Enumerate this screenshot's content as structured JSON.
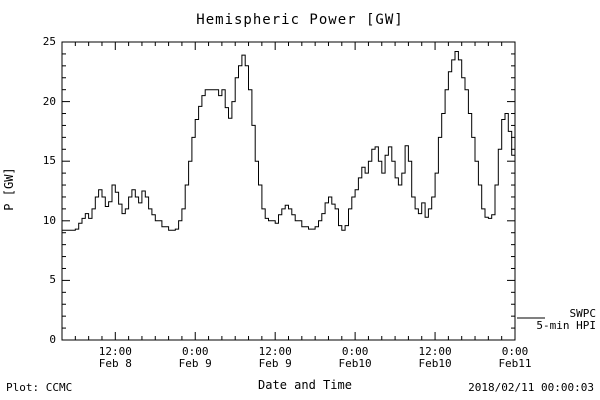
{
  "title": "Hemispheric Power [GW]",
  "axes": {
    "ylabel": "P [GW]",
    "xlabel": "Date and Time",
    "yticks": [
      0,
      5,
      10,
      15,
      20,
      25
    ],
    "xticks": [
      {
        "hour": 12,
        "time": "12:00",
        "date": "Feb 8"
      },
      {
        "hour": 24,
        "time": "0:00",
        "date": "Feb 9"
      },
      {
        "hour": 36,
        "time": "12:00",
        "date": "Feb 9"
      },
      {
        "hour": 48,
        "time": "0:00",
        "date": "Feb10"
      },
      {
        "hour": 60,
        "time": "12:00",
        "date": "Feb10"
      },
      {
        "hour": 72,
        "time": "0:00",
        "date": "Feb11"
      }
    ]
  },
  "legend": {
    "source_label": "SWPC",
    "series_label": "5-min HPI"
  },
  "footer": {
    "left": "Plot: CCMC",
    "right": "2018/02/11 00:00:03"
  },
  "colors": {
    "line": "#000000",
    "axis": "#000000",
    "background": "#ffffff"
  },
  "chart_data": {
    "type": "line",
    "title": "Hemispheric Power [GW]",
    "xlabel": "Date and Time",
    "ylabel": "P [GW]",
    "ylim": [
      0,
      25
    ],
    "xlim_hours_since_feb8": [
      4,
      72
    ],
    "x_unit": "hours since 2018-02-08 00:00 UT",
    "grid": false,
    "legend_position": "outside-right-bottom",
    "step_mode": "step-after",
    "points": [
      [
        4,
        9.2
      ],
      [
        5,
        9.2
      ],
      [
        6,
        9.3
      ],
      [
        6.5,
        9.8
      ],
      [
        7,
        10.2
      ],
      [
        7.5,
        10.6
      ],
      [
        8,
        10.2
      ],
      [
        8.5,
        11.0
      ],
      [
        9,
        12.0
      ],
      [
        9.5,
        12.6
      ],
      [
        10,
        12.0
      ],
      [
        10.5,
        11.2
      ],
      [
        11,
        11.6
      ],
      [
        11.5,
        13.0
      ],
      [
        12,
        12.4
      ],
      [
        12.5,
        11.4
      ],
      [
        13,
        10.6
      ],
      [
        13.5,
        11.0
      ],
      [
        14,
        12.0
      ],
      [
        14.5,
        12.6
      ],
      [
        15,
        12.0
      ],
      [
        15.5,
        11.5
      ],
      [
        16,
        12.5
      ],
      [
        16.5,
        12.0
      ],
      [
        17,
        11.0
      ],
      [
        17.5,
        10.5
      ],
      [
        18,
        10.0
      ],
      [
        19,
        9.5
      ],
      [
        20,
        9.2
      ],
      [
        21,
        9.3
      ],
      [
        21.5,
        10.0
      ],
      [
        22,
        11.0
      ],
      [
        22.5,
        13.0
      ],
      [
        23,
        15.0
      ],
      [
        23.5,
        17.0
      ],
      [
        24,
        18.5
      ],
      [
        24.5,
        19.6
      ],
      [
        25,
        20.5
      ],
      [
        25.5,
        21.0
      ],
      [
        26,
        21.0
      ],
      [
        27,
        21.0
      ],
      [
        27.5,
        20.5
      ],
      [
        28,
        21.0
      ],
      [
        28.5,
        19.5
      ],
      [
        29,
        18.6
      ],
      [
        29.5,
        20.0
      ],
      [
        30,
        22.0
      ],
      [
        30.5,
        23.0
      ],
      [
        31,
        23.9
      ],
      [
        31.5,
        23.0
      ],
      [
        32,
        21.0
      ],
      [
        32.5,
        18.0
      ],
      [
        33,
        15.0
      ],
      [
        33.5,
        13.0
      ],
      [
        34,
        11.0
      ],
      [
        34.5,
        10.2
      ],
      [
        35,
        10.0
      ],
      [
        36,
        9.8
      ],
      [
        36.5,
        10.5
      ],
      [
        37,
        11.0
      ],
      [
        37.5,
        11.3
      ],
      [
        38,
        11.0
      ],
      [
        38.5,
        10.5
      ],
      [
        39,
        10.0
      ],
      [
        40,
        9.5
      ],
      [
        41,
        9.3
      ],
      [
        42,
        9.5
      ],
      [
        42.5,
        10.0
      ],
      [
        43,
        10.6
      ],
      [
        43.5,
        11.5
      ],
      [
        44,
        12.0
      ],
      [
        44.5,
        11.4
      ],
      [
        45,
        11.0
      ],
      [
        45.5,
        9.6
      ],
      [
        46,
        9.2
      ],
      [
        46.5,
        9.6
      ],
      [
        47,
        11.0
      ],
      [
        47.5,
        12.0
      ],
      [
        48,
        12.6
      ],
      [
        48.5,
        13.6
      ],
      [
        49,
        14.5
      ],
      [
        49.5,
        14.0
      ],
      [
        50,
        15.0
      ],
      [
        50.5,
        16.0
      ],
      [
        51,
        16.2
      ],
      [
        51.5,
        15.0
      ],
      [
        52,
        14.0
      ],
      [
        52.5,
        15.5
      ],
      [
        53,
        16.2
      ],
      [
        53.5,
        15.0
      ],
      [
        54,
        13.6
      ],
      [
        54.5,
        13.0
      ],
      [
        55,
        14.0
      ],
      [
        55.5,
        16.3
      ],
      [
        56,
        15.0
      ],
      [
        56.5,
        12.0
      ],
      [
        57,
        11.0
      ],
      [
        57.5,
        10.6
      ],
      [
        58,
        11.5
      ],
      [
        58.5,
        10.3
      ],
      [
        59,
        11.0
      ],
      [
        59.5,
        12.0
      ],
      [
        60,
        14.0
      ],
      [
        60.5,
        17.0
      ],
      [
        61,
        19.0
      ],
      [
        61.5,
        21.0
      ],
      [
        62,
        22.5
      ],
      [
        62.5,
        23.5
      ],
      [
        63,
        24.2
      ],
      [
        63.5,
        23.5
      ],
      [
        64,
        22.0
      ],
      [
        64.5,
        21.0
      ],
      [
        65,
        19.0
      ],
      [
        65.5,
        17.0
      ],
      [
        66,
        15.0
      ],
      [
        66.5,
        13.0
      ],
      [
        67,
        11.0
      ],
      [
        67.5,
        10.3
      ],
      [
        68,
        10.2
      ],
      [
        68.5,
        10.5
      ],
      [
        69,
        13.0
      ],
      [
        69.5,
        16.0
      ],
      [
        70,
        18.5
      ],
      [
        70.5,
        19.0
      ],
      [
        71,
        17.5
      ],
      [
        71.5,
        15.5
      ],
      [
        72,
        14.5
      ]
    ]
  }
}
